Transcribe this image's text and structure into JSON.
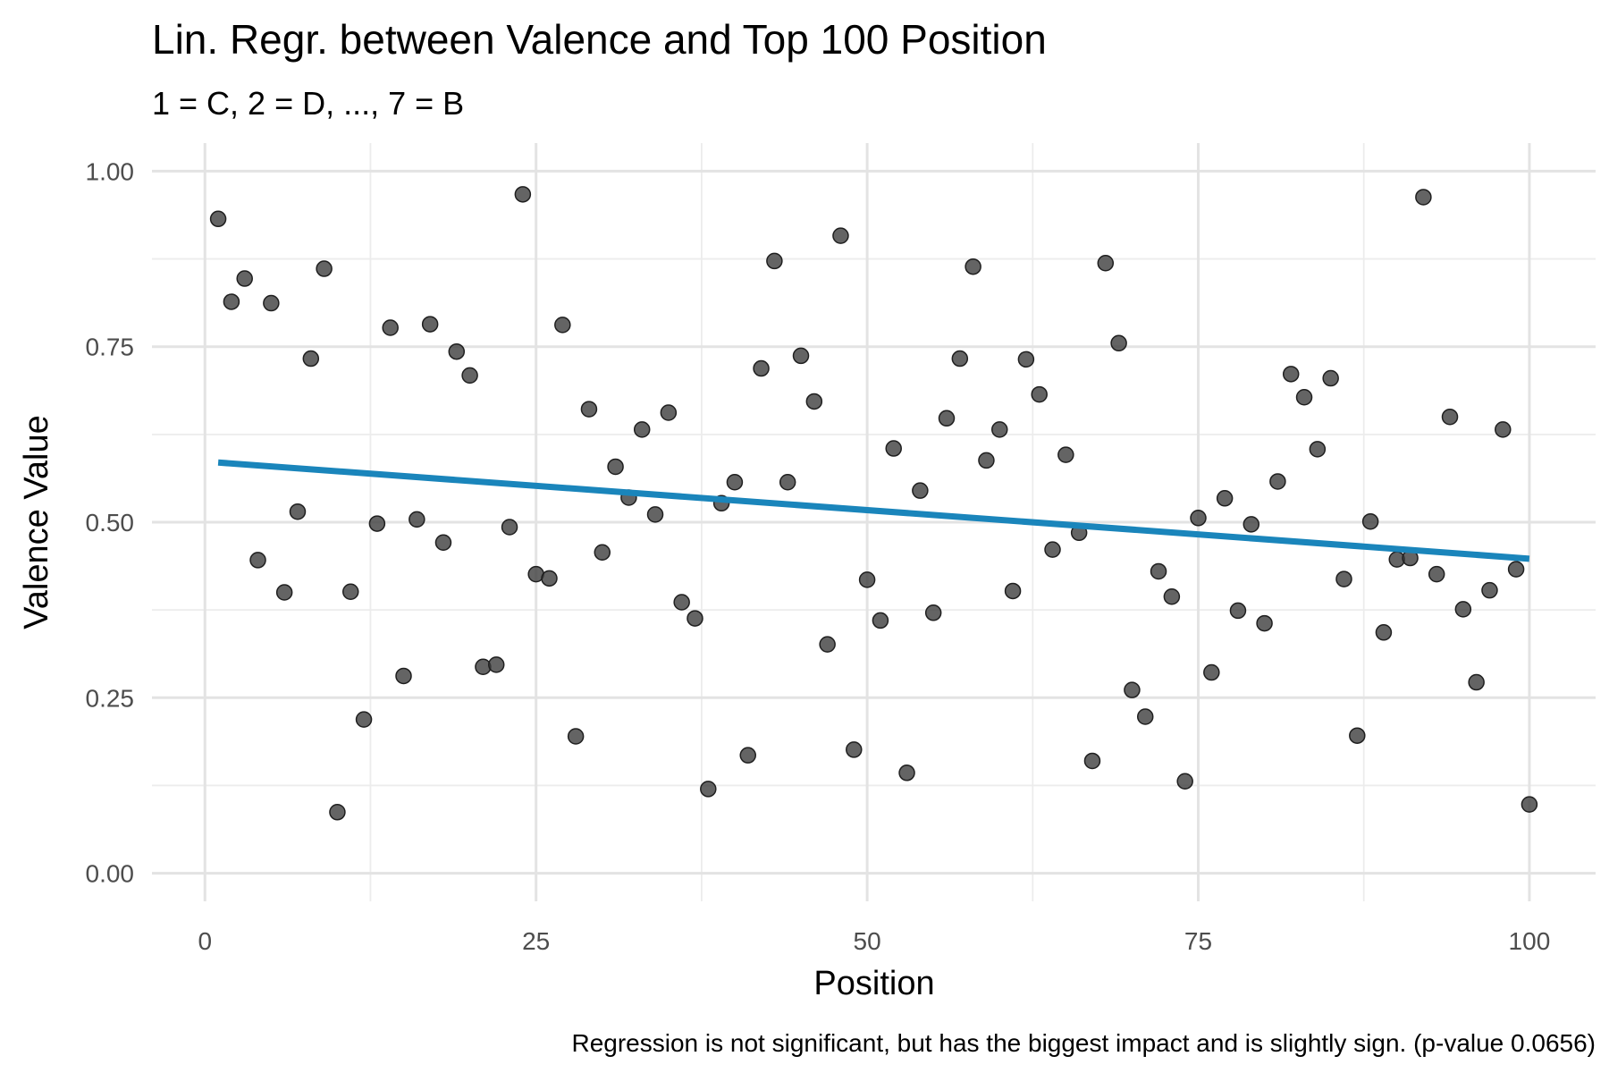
{
  "chart_data": {
    "type": "scatter",
    "title": "Lin. Regr. between Valence and Top 100 Position",
    "subtitle": "1 = C, 2 = D, ..., 7 = B",
    "xlabel": "Position",
    "ylabel": "Valence Value",
    "caption": "Regression is not significant, but has the biggest impact and is slightly sign. (p-value 0.0656)",
    "xlim": [
      -4,
      105
    ],
    "ylim": [
      -0.04,
      1.04
    ],
    "x_ticks": [
      0,
      25,
      50,
      75,
      100
    ],
    "x_tick_labels": [
      "0",
      "25",
      "50",
      "75",
      "100"
    ],
    "y_ticks": [
      0,
      0.25,
      0.5,
      0.75,
      1
    ],
    "y_tick_labels": [
      "0.00",
      "0.25",
      "0.50",
      "0.75",
      "1.00"
    ],
    "grid": true,
    "legend": "none",
    "colors": {
      "points": "#3d3d3d",
      "regression_line": "#1a85bb"
    },
    "x": [
      1,
      2,
      3,
      4,
      5,
      6,
      7,
      8,
      9,
      10,
      11,
      12,
      13,
      14,
      15,
      16,
      17,
      18,
      19,
      20,
      21,
      22,
      23,
      24,
      25,
      26,
      27,
      28,
      29,
      30,
      31,
      32,
      33,
      34,
      35,
      36,
      37,
      38,
      39,
      40,
      41,
      42,
      43,
      44,
      45,
      46,
      47,
      48,
      49,
      50,
      51,
      52,
      53,
      54,
      55,
      56,
      57,
      58,
      59,
      60,
      61,
      62,
      63,
      64,
      65,
      66,
      67,
      68,
      69,
      70,
      71,
      72,
      73,
      74,
      75,
      76,
      77,
      78,
      79,
      80,
      81,
      82,
      83,
      84,
      85,
      86,
      87,
      88,
      89,
      90,
      91,
      92,
      93,
      94,
      95,
      96,
      97,
      98,
      99,
      100
    ],
    "y": [
      0.932,
      0.814,
      0.847,
      0.446,
      0.812,
      0.4,
      0.515,
      0.733,
      0.861,
      0.087,
      0.401,
      0.219,
      0.498,
      0.777,
      0.281,
      0.504,
      0.782,
      0.471,
      0.743,
      0.709,
      0.294,
      0.297,
      0.493,
      0.967,
      0.426,
      0.42,
      0.781,
      0.195,
      0.661,
      0.457,
      0.579,
      0.535,
      0.632,
      0.511,
      0.656,
      0.386,
      0.363,
      0.12,
      0.527,
      0.557,
      0.168,
      0.719,
      0.872,
      0.557,
      0.737,
      0.672,
      0.326,
      0.908,
      0.176,
      0.418,
      0.36,
      0.605,
      0.143,
      0.545,
      0.371,
      0.648,
      0.733,
      0.864,
      0.588,
      0.632,
      0.402,
      0.732,
      0.682,
      0.461,
      0.596,
      0.485,
      0.16,
      0.869,
      0.755,
      0.261,
      0.223,
      0.43,
      0.394,
      0.131,
      0.506,
      0.286,
      0.534,
      0.374,
      0.497,
      0.356,
      0.558,
      0.711,
      0.678,
      0.604,
      0.705,
      0.419,
      0.196,
      0.501,
      0.343,
      0.447,
      0.449,
      0.963,
      0.426,
      0.65,
      0.376,
      0.272,
      0.403,
      0.632,
      0.433,
      0.098
    ],
    "regression": {
      "x": [
        1,
        100
      ],
      "y": [
        0.585,
        0.448
      ]
    }
  }
}
